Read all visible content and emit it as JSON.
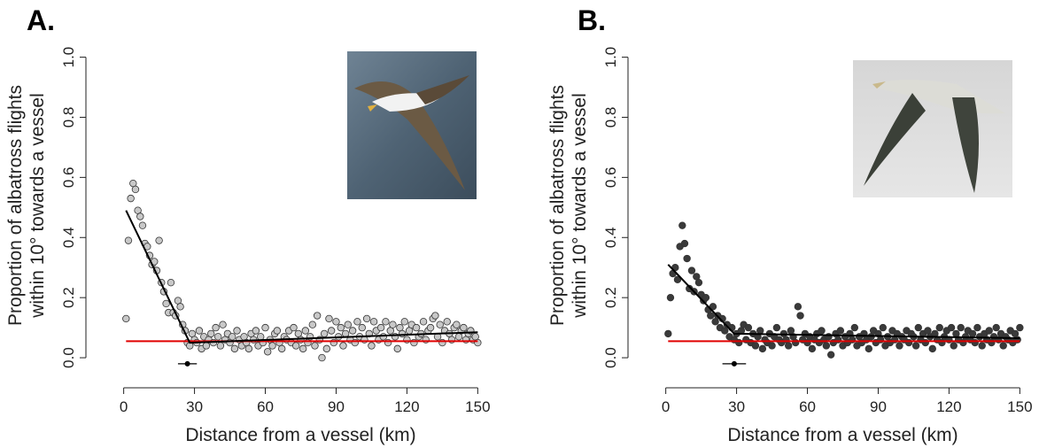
{
  "chart_data": [
    {
      "type": "scatter",
      "panel_label": "A.",
      "x_label": "Distance from a vessel (km)",
      "y_label": [
        "Proportion of albatross flights",
        "within 10° towards a vessel"
      ],
      "xlim": [
        -16,
        166
      ],
      "ylim": [
        -0.1,
        1.04
      ],
      "xticks": [
        0,
        30,
        60,
        90,
        120,
        150
      ],
      "yticks": [
        {
          "value": 0,
          "label": "0.0"
        },
        0.2,
        0.4,
        0.6,
        0.8,
        {
          "value": 1,
          "label": "1.0"
        }
      ],
      "points": {
        "color": "#c8c8c8",
        "x": [
          1,
          2,
          3,
          4,
          5,
          6,
          7,
          8,
          9,
          10,
          11,
          12,
          13,
          14,
          15,
          16,
          17,
          18,
          19,
          20,
          21,
          22,
          23,
          24,
          25,
          26,
          27,
          28,
          29,
          30,
          31,
          32,
          33,
          34,
          35,
          36,
          37,
          38,
          39,
          40,
          41,
          42,
          43,
          44,
          45,
          46,
          47,
          48,
          49,
          50,
          51,
          52,
          53,
          54,
          55,
          56,
          57,
          58,
          59,
          60,
          61,
          62,
          63,
          64,
          65,
          66,
          67,
          68,
          69,
          70,
          71,
          72,
          73,
          74,
          75,
          76,
          77,
          78,
          79,
          80,
          81,
          82,
          83,
          84,
          85,
          86,
          87,
          88,
          89,
          90,
          91,
          92,
          93,
          94,
          95,
          96,
          97,
          98,
          99,
          100,
          101,
          102,
          103,
          104,
          105,
          106,
          107,
          108,
          109,
          110,
          111,
          112,
          113,
          114,
          115,
          116,
          117,
          118,
          119,
          120,
          121,
          122,
          123,
          124,
          125,
          126,
          127,
          128,
          129,
          130,
          131,
          132,
          133,
          134,
          135,
          136,
          137,
          138,
          139,
          140,
          141,
          142,
          143,
          144,
          145,
          146,
          147,
          148,
          149,
          150
        ],
        "values": [
          0.13,
          0.39,
          0.53,
          0.58,
          0.56,
          0.49,
          0.47,
          0.44,
          0.38,
          0.37,
          0.34,
          0.31,
          0.32,
          0.29,
          0.39,
          0.25,
          0.22,
          0.18,
          0.15,
          0.25,
          0.15,
          0.14,
          0.19,
          0.17,
          0.11,
          0.09,
          0.05,
          0.04,
          0.08,
          0.06,
          0.05,
          0.09,
          0.03,
          0.07,
          0.04,
          0.06,
          0.08,
          0.05,
          0.1,
          0.07,
          0.04,
          0.11,
          0.06,
          0.08,
          0.05,
          0.07,
          0.03,
          0.09,
          0.06,
          0.04,
          0.07,
          0.05,
          0.03,
          0.08,
          0.06,
          0.09,
          0.04,
          0.07,
          0.05,
          0.1,
          0.02,
          0.06,
          0.04,
          0.08,
          0.09,
          0.05,
          0.03,
          0.07,
          0.06,
          0.09,
          0.05,
          0.1,
          0.04,
          0.08,
          0.06,
          0.03,
          0.09,
          0.05,
          0.07,
          0.11,
          0.04,
          0.14,
          0.06,
          0.0,
          0.08,
          0.03,
          0.13,
          0.09,
          0.05,
          0.12,
          0.07,
          0.1,
          0.04,
          0.08,
          0.11,
          0.06,
          0.09,
          0.05,
          0.12,
          0.07,
          0.1,
          0.06,
          0.13,
          0.08,
          0.04,
          0.12,
          0.09,
          0.06,
          0.1,
          0.07,
          0.12,
          0.05,
          0.09,
          0.11,
          0.07,
          0.03,
          0.1,
          0.08,
          0.12,
          0.06,
          0.09,
          0.11,
          0.05,
          0.1,
          0.07,
          0.08,
          0.12,
          0.06,
          0.09,
          0.1,
          0.13,
          0.14,
          0.07,
          0.11,
          0.05,
          0.09,
          0.12,
          0.08,
          0.06,
          0.1,
          0.11,
          0.07,
          0.09,
          0.1,
          0.06,
          0.08,
          0.09,
          0.06,
          0.07,
          0.05
        ]
      },
      "fit": {
        "color": "#000000",
        "x": [
          1,
          28,
          150
        ],
        "values": [
          0.49,
          0.05,
          0.085
        ]
      },
      "reference": {
        "color": "#e00000",
        "x": [
          1,
          150
        ],
        "values": [
          0.055,
          0.055
        ]
      },
      "breakpoint": {
        "x": 27,
        "error": 4,
        "y": -0.02
      }
    },
    {
      "type": "scatter",
      "panel_label": "B.",
      "x_label": "Distance from a vessel (km)",
      "y_label": [
        "Proportion of albatross flights",
        "within 10° towards a vessel"
      ],
      "xlim": [
        -16,
        166
      ],
      "ylim": [
        -0.1,
        1.04
      ],
      "xticks": [
        0,
        30,
        60,
        90,
        120,
        150
      ],
      "yticks": [
        {
          "value": 0,
          "label": "0.0"
        },
        0.2,
        0.4,
        0.6,
        0.8,
        {
          "value": 1,
          "label": "1.0"
        }
      ],
      "points": {
        "color": "#3a3a3a",
        "x": [
          1,
          2,
          3,
          4,
          5,
          6,
          7,
          8,
          9,
          10,
          11,
          12,
          13,
          14,
          15,
          16,
          17,
          18,
          19,
          20,
          21,
          22,
          23,
          24,
          25,
          26,
          27,
          28,
          29,
          30,
          31,
          32,
          33,
          34,
          35,
          36,
          37,
          38,
          39,
          40,
          41,
          42,
          43,
          44,
          45,
          46,
          47,
          48,
          49,
          50,
          51,
          52,
          53,
          54,
          55,
          56,
          57,
          58,
          59,
          60,
          61,
          62,
          63,
          64,
          65,
          66,
          67,
          68,
          69,
          70,
          71,
          72,
          73,
          74,
          75,
          76,
          77,
          78,
          79,
          80,
          81,
          82,
          83,
          84,
          85,
          86,
          87,
          88,
          89,
          90,
          91,
          92,
          93,
          94,
          95,
          96,
          97,
          98,
          99,
          100,
          101,
          102,
          103,
          104,
          105,
          106,
          107,
          108,
          109,
          110,
          111,
          112,
          113,
          114,
          115,
          116,
          117,
          118,
          119,
          120,
          121,
          122,
          123,
          124,
          125,
          126,
          127,
          128,
          129,
          130,
          131,
          132,
          133,
          134,
          135,
          136,
          137,
          138,
          139,
          140,
          141,
          142,
          143,
          144,
          145,
          146,
          147,
          148,
          149,
          150
        ],
        "values": [
          0.08,
          0.2,
          0.28,
          0.3,
          0.26,
          0.37,
          0.44,
          0.38,
          0.33,
          0.23,
          0.29,
          0.22,
          0.27,
          0.25,
          0.21,
          0.19,
          0.2,
          0.16,
          0.14,
          0.17,
          0.12,
          0.14,
          0.1,
          0.13,
          0.09,
          0.11,
          0.07,
          0.1,
          0.06,
          0.08,
          0.05,
          0.09,
          0.11,
          0.06,
          0.1,
          0.05,
          0.08,
          0.04,
          0.07,
          0.09,
          0.03,
          0.06,
          0.05,
          0.08,
          0.04,
          0.07,
          0.1,
          0.06,
          0.05,
          0.08,
          0.06,
          0.04,
          0.09,
          0.07,
          0.05,
          0.17,
          0.14,
          0.06,
          0.08,
          0.05,
          0.07,
          0.03,
          0.06,
          0.08,
          0.05,
          0.09,
          0.06,
          0.04,
          0.07,
          0.01,
          0.05,
          0.08,
          0.06,
          0.09,
          0.04,
          0.07,
          0.05,
          0.08,
          0.06,
          0.1,
          0.04,
          0.07,
          0.05,
          0.08,
          0.06,
          0.03,
          0.07,
          0.09,
          0.05,
          0.08,
          0.06,
          0.1,
          0.04,
          0.07,
          0.05,
          0.09,
          0.06,
          0.08,
          0.04,
          0.07,
          0.06,
          0.09,
          0.05,
          0.08,
          0.07,
          0.04,
          0.1,
          0.06,
          0.08,
          0.05,
          0.09,
          0.07,
          0.03,
          0.08,
          0.06,
          0.1,
          0.05,
          0.07,
          0.09,
          0.06,
          0.1,
          0.04,
          0.08,
          0.06,
          0.1,
          0.05,
          0.07,
          0.09,
          0.06,
          0.08,
          0.05,
          0.1,
          0.07,
          0.04,
          0.08,
          0.06,
          0.09,
          0.05,
          0.07,
          0.1,
          0.06,
          0.08,
          0.04,
          0.07,
          0.06,
          0.09,
          0.05,
          0.08,
          0.06,
          0.1
        ]
      },
      "fit": {
        "color": "#000000",
        "x": [
          1,
          29,
          150
        ],
        "values": [
          0.31,
          0.08,
          0.065
        ]
      },
      "reference": {
        "color": "#e00000",
        "x": [
          1,
          150
        ],
        "values": [
          0.055,
          0.055
        ]
      },
      "breakpoint": {
        "x": 29,
        "error": 5,
        "y": -0.02
      }
    }
  ]
}
